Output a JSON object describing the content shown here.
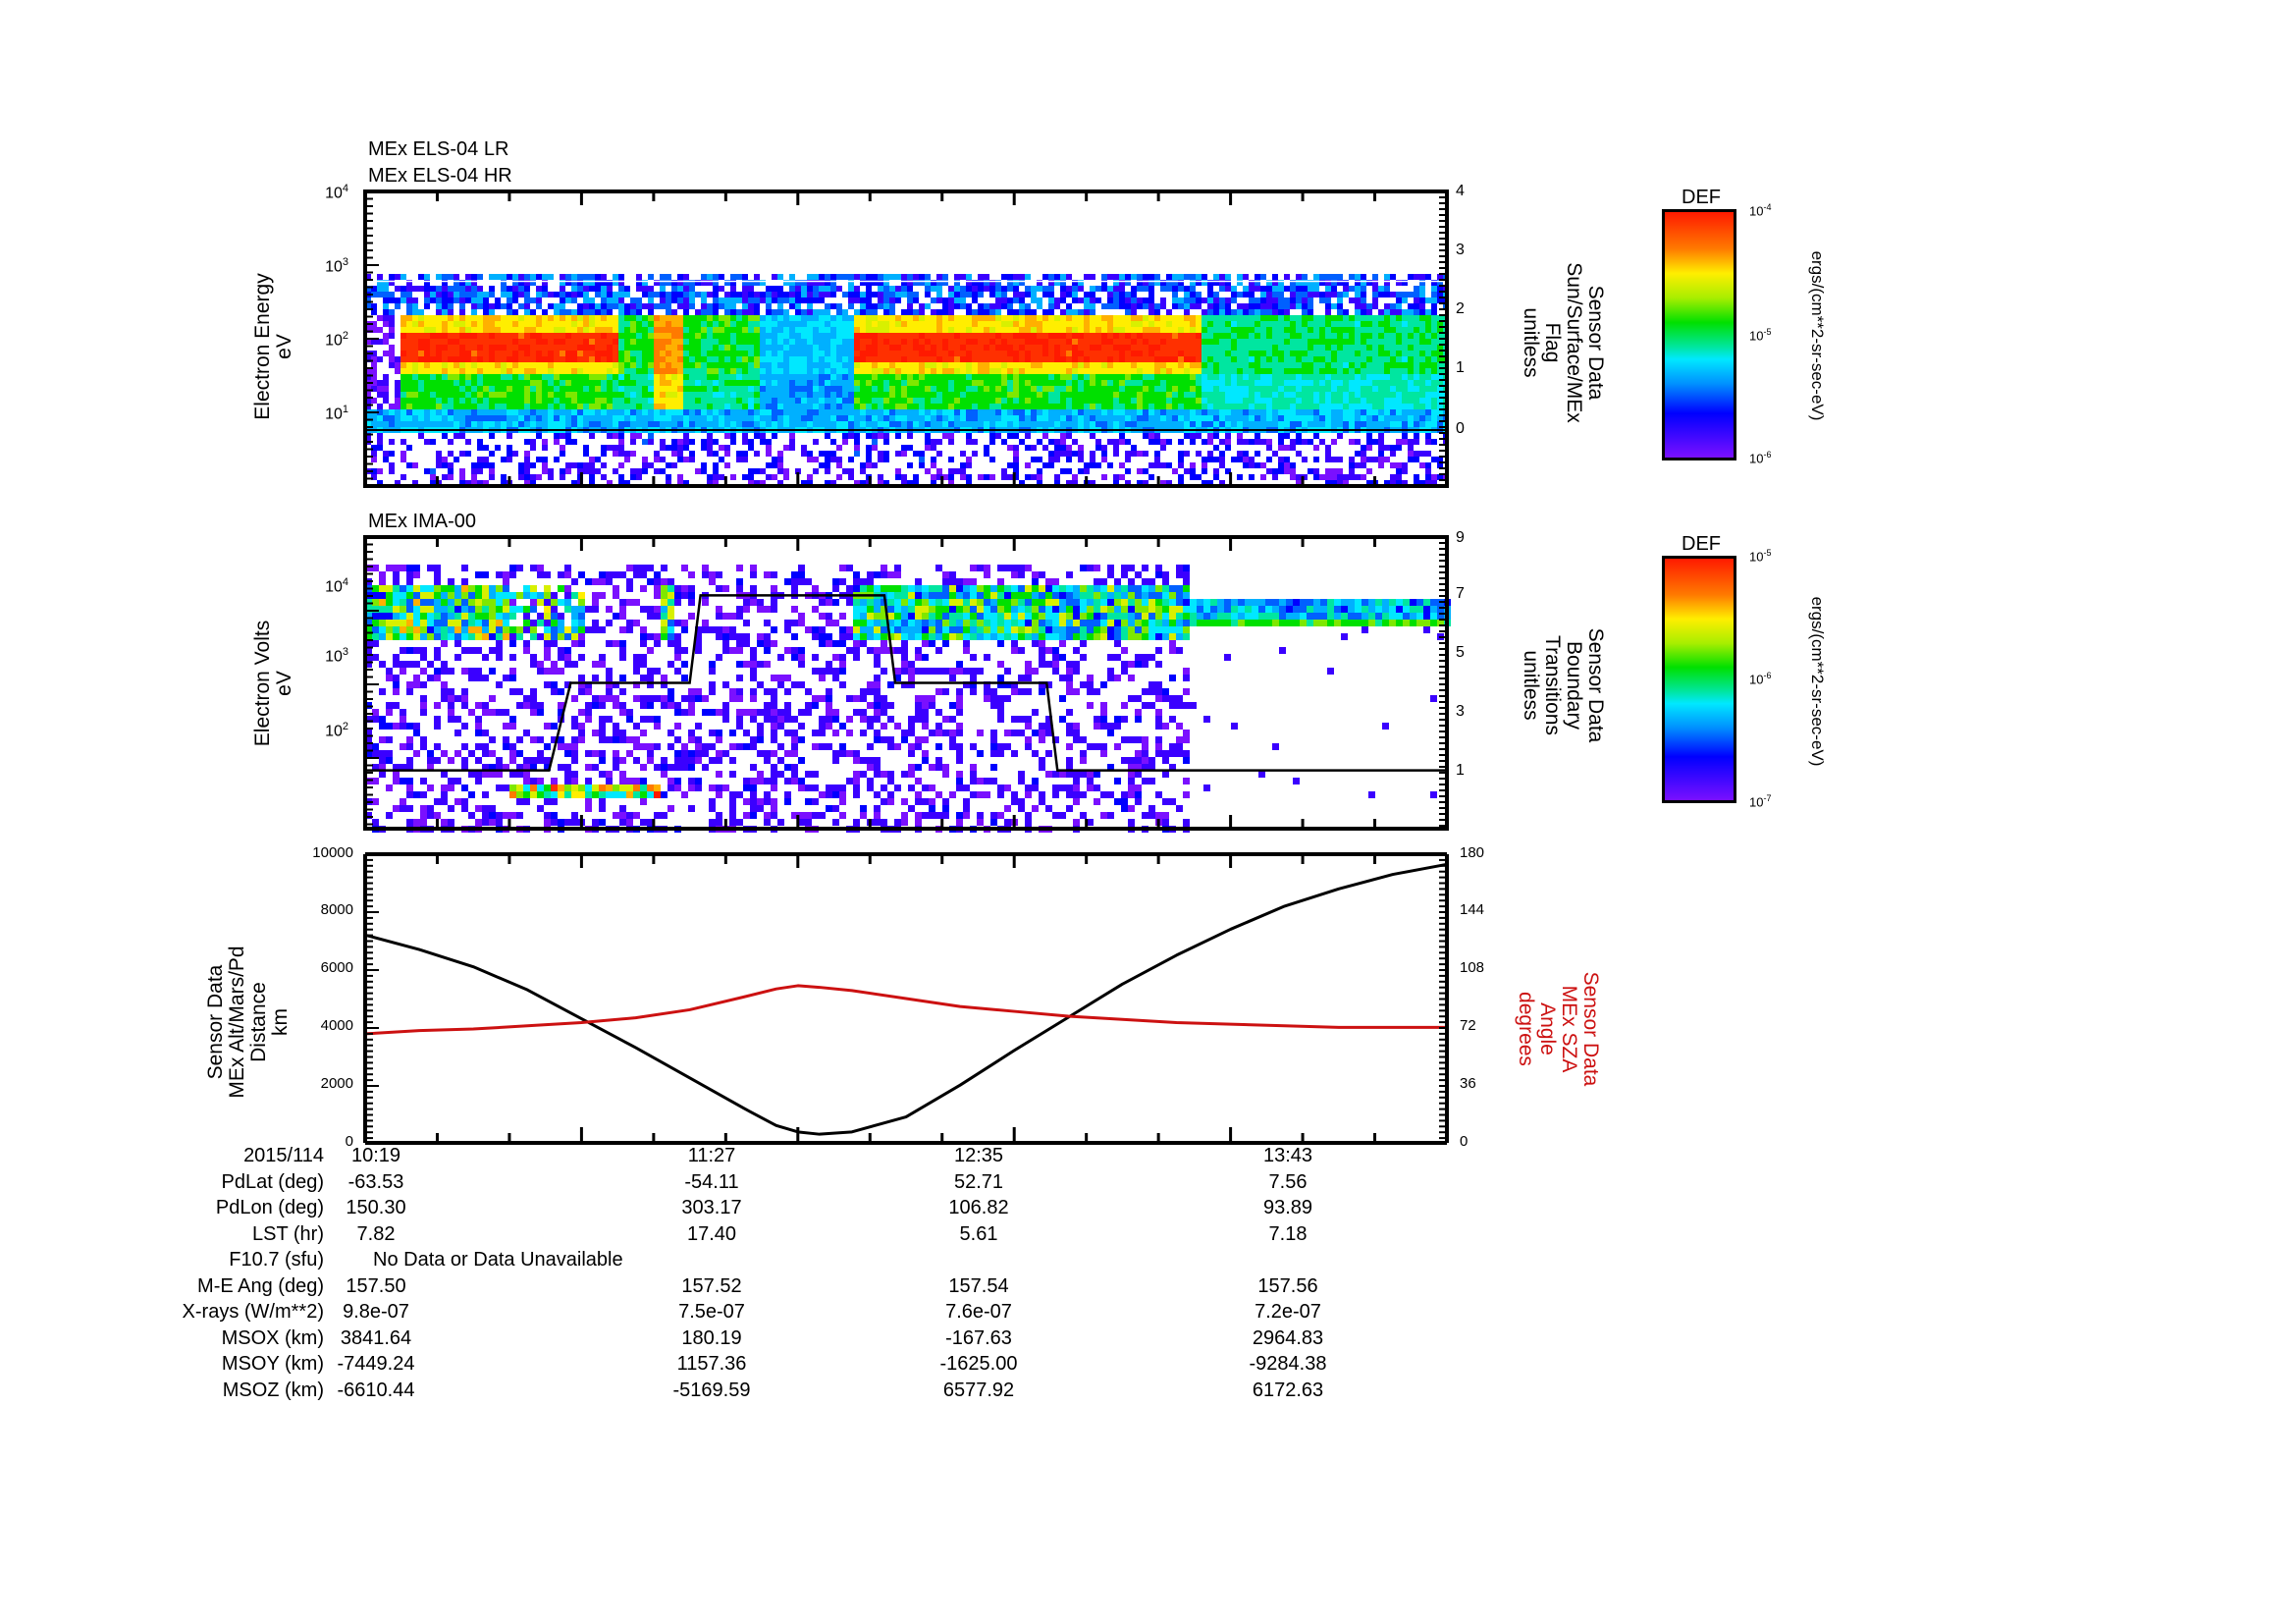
{
  "chart_data": [
    {
      "type": "heatmap",
      "panel": "els",
      "title_lines": [
        "MEx ELS-04 LR",
        "MEx ELS-04 HR"
      ],
      "ylabel_lines": [
        "Electron Energy",
        "eV"
      ],
      "yscale": "log",
      "ylim": [
        1,
        10000
      ],
      "yticks": [
        {
          "base": "10",
          "exp": "4"
        },
        {
          "base": "10",
          "exp": "3"
        },
        {
          "base": "10",
          "exp": "2"
        },
        {
          "base": "10",
          "exp": "1"
        }
      ],
      "y2label_lines": [
        "Sensor Data",
        "Sun/Surface/MEx",
        "Flag",
        "unitless"
      ],
      "y2lim": [
        -1,
        4
      ],
      "y2ticks": [
        "4",
        "3",
        "2",
        "1",
        "0"
      ],
      "overlay_line": {
        "name": "Sun/Surface/MEx Flag",
        "constant_value": 0
      },
      "colorbar": {
        "title": "DEF",
        "max": {
          "base": "10",
          "exp": "-4"
        },
        "mid": {
          "base": "10",
          "exp": "-5"
        },
        "min": {
          "base": "10",
          "exp": "-6"
        },
        "units": "ergs/(cm**2-sr-sec-eV)"
      },
      "description": "Electron spectrogram: red/orange core ~30-150 eV from 10:19 to ~10:50 and ~12:25 to ~13:23; narrow red spike near 11:50; broadband green ~7-100 eV after 13:23"
    },
    {
      "type": "heatmap",
      "panel": "ima",
      "title_lines": [
        "MEx IMA-00"
      ],
      "ylabel_lines": [
        "Electron Volts",
        "eV"
      ],
      "yscale": "log",
      "ylim": [
        10,
        50000
      ],
      "yticks": [
        {
          "base": "10",
          "exp": "4"
        },
        {
          "base": "10",
          "exp": "3"
        },
        {
          "base": "10",
          "exp": "2"
        }
      ],
      "y2label_lines": [
        "Sensor Data",
        "Boundary",
        "Transitions",
        "unitless"
      ],
      "y2lim": [
        -1,
        9
      ],
      "y2ticks": [
        "9",
        "7",
        "5",
        "3",
        "1"
      ],
      "overlay_line": {
        "name": "Boundary Transitions",
        "points": [
          [
            0.0,
            1
          ],
          [
            0.17,
            1
          ],
          [
            0.19,
            4
          ],
          [
            0.3,
            4
          ],
          [
            0.31,
            7
          ],
          [
            0.48,
            7
          ],
          [
            0.49,
            4
          ],
          [
            0.63,
            4
          ],
          [
            0.64,
            1
          ],
          [
            1.0,
            1
          ]
        ]
      },
      "colorbar": {
        "title": "DEF",
        "max": {
          "base": "10",
          "exp": "-5"
        },
        "mid": {
          "base": "10",
          "exp": "-6"
        },
        "min": {
          "base": "10",
          "exp": "-7"
        },
        "units": "ergs/(cm**2-sr-sec-eV)"
      },
      "description": "Ion spectrogram: banded ions ~1-5 keV 10:19-10:50 and 12:10-13:23, narrow low-energy band ~20 eV 11:05-11:35, steady band ~2 keV after 13:23"
    },
    {
      "type": "line",
      "panel": "orbit",
      "ylabel_lines": [
        "Sensor Data",
        "MEx Alt/Mars/Pd",
        "Distance",
        "km"
      ],
      "ylim": [
        0,
        10000
      ],
      "yticks": [
        "10000",
        "8000",
        "6000",
        "4000",
        "2000",
        "0"
      ],
      "y2label_lines": [
        "Sensor Data",
        "MEx SZA",
        "Angle",
        "degrees"
      ],
      "y2lim": [
        0,
        180
      ],
      "y2ticks": [
        "180",
        "144",
        "108",
        "72",
        "36",
        "0"
      ],
      "x_tick_labels": [
        "10:19",
        "11:27",
        "12:35",
        "13:43"
      ],
      "series": [
        {
          "name": "MEx Alt/Mars/Pd Distance (km)",
          "color": "#000000",
          "axis": "left",
          "x": [
            0.0,
            0.05,
            0.1,
            0.15,
            0.2,
            0.25,
            0.3,
            0.35,
            0.38,
            0.4,
            0.42,
            0.45,
            0.5,
            0.55,
            0.6,
            0.65,
            0.7,
            0.75,
            0.8,
            0.85,
            0.9,
            0.95,
            1.0
          ],
          "values": [
            7200,
            6700,
            6100,
            5300,
            4300,
            3300,
            2250,
            1200,
            600,
            380,
            300,
            380,
            900,
            2000,
            3200,
            4350,
            5500,
            6500,
            7400,
            8200,
            8800,
            9300,
            9650
          ]
        },
        {
          "name": "MEx SZA Angle (degrees)",
          "color": "#cc1111",
          "axis": "right",
          "x": [
            0.0,
            0.05,
            0.1,
            0.15,
            0.2,
            0.25,
            0.3,
            0.35,
            0.38,
            0.4,
            0.42,
            0.45,
            0.5,
            0.55,
            0.6,
            0.65,
            0.7,
            0.75,
            0.8,
            0.85,
            0.9,
            0.95,
            1.0
          ],
          "values": [
            68,
            70,
            71,
            73,
            75,
            78,
            83,
            91,
            96,
            98,
            97,
            95,
            90,
            85,
            82,
            79,
            77,
            75,
            74,
            73,
            72,
            72,
            72
          ]
        }
      ]
    }
  ],
  "footer_table": {
    "date": "2015/114",
    "times": [
      "10:19",
      "11:27",
      "12:35",
      "13:43"
    ],
    "rows": [
      {
        "label": "PdLat (deg)",
        "values": [
          "-63.53",
          "-54.11",
          "52.71",
          "7.56"
        ]
      },
      {
        "label": "PdLon (deg)",
        "values": [
          "150.30",
          "303.17",
          "106.82",
          "93.89"
        ]
      },
      {
        "label": "LST (hr)",
        "values": [
          "7.82",
          "17.40",
          "5.61",
          "7.18"
        ]
      },
      {
        "label": "F10.7 (sfu)",
        "note": "No Data or Data Unavailable"
      },
      {
        "label": "M-E Ang (deg)",
        "values": [
          "157.50",
          "157.52",
          "157.54",
          "157.56"
        ]
      },
      {
        "label": "X-rays (W/m**2)",
        "values": [
          "9.8e-07",
          "7.5e-07",
          "7.6e-07",
          "7.2e-07"
        ]
      },
      {
        "label": "MSOX (km)",
        "values": [
          "3841.64",
          "180.19",
          "-167.63",
          "2964.83"
        ]
      },
      {
        "label": "MSOY (km)",
        "values": [
          "-7449.24",
          "1157.36",
          "-1625.00",
          "-9284.38"
        ]
      },
      {
        "label": "MSOZ (km)",
        "values": [
          "-6610.44",
          "-5169.59",
          "6577.92",
          "6172.63"
        ]
      }
    ]
  }
}
